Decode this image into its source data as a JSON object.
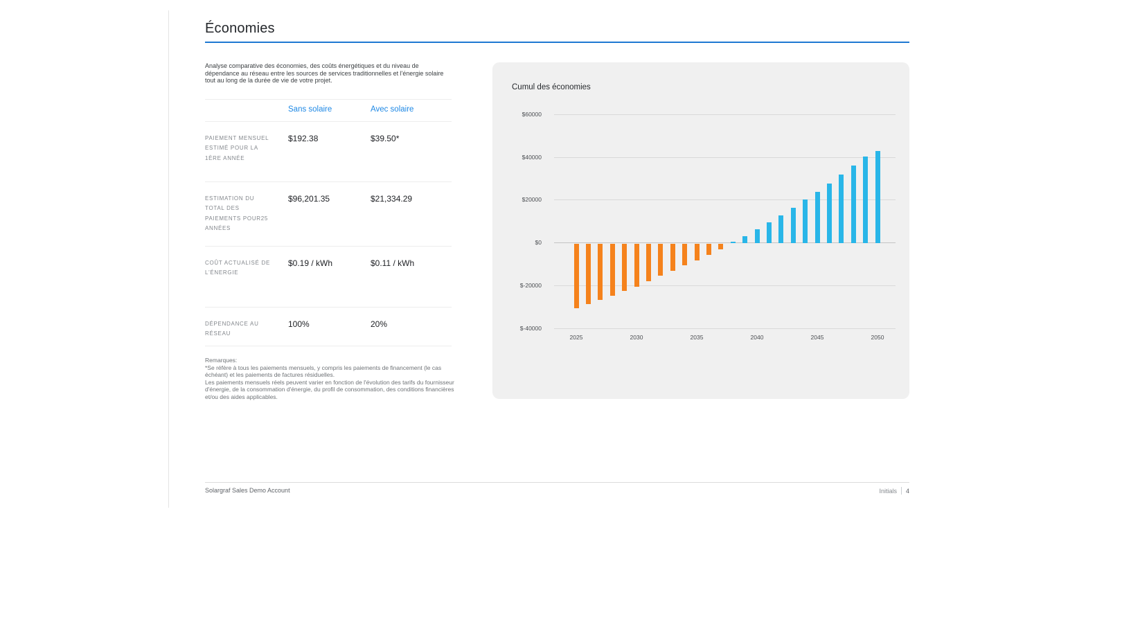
{
  "page": {
    "title": "Économies",
    "description": "Analyse comparative des économies, des coûts énergétiques et du niveau de dépendance au réseau entre les sources de services traditionnelles et l'énergie solaire tout au long de la durée de vie de votre projet.",
    "accent_color": "#1e78d2"
  },
  "comparison_table": {
    "columns": [
      "Sans solaire",
      "Avec solaire"
    ],
    "rows": [
      {
        "label": "PAIEMENT MENSUEL ESTIMÉ POUR LA 1ÈRE ANNÉE",
        "sans_solaire": "$192.38",
        "avec_solaire": "$39.50*"
      },
      {
        "label": "ESTIMATION DU TOTAL DES PAIEMENTS POUR25 ANNÉES",
        "sans_solaire": "$96,201.35",
        "avec_solaire": "$21,334.29"
      },
      {
        "label": "COÛT ACTUALISÉ DE L'ÉNERGIE",
        "sans_solaire": "$0.19 / kWh",
        "avec_solaire": "$0.11 / kWh"
      },
      {
        "label": "DÉPENDANCE AU RÉSEAU",
        "sans_solaire": "100%",
        "avec_solaire": "20%"
      }
    ]
  },
  "notes": {
    "heading": "Remarques:",
    "lines": [
      "*Se réfère à tous les paiements mensuels, y compris les paiements de financement (le cas échéant) et les paiements de factures résiduelles.",
      "Les paiements mensuels réels peuvent varier en fonction de l'évolution des tarifs du fournisseur d'énergie, de la consommation d'énergie, du profil de consommation, des conditions financières et/ou des aides applicables."
    ]
  },
  "chart_data": {
    "type": "bar",
    "title": "Cumul des économies",
    "x": [
      2025,
      2026,
      2027,
      2028,
      2029,
      2030,
      2031,
      2032,
      2033,
      2034,
      2035,
      2036,
      2037,
      2038,
      2039,
      2040,
      2041,
      2042,
      2043,
      2044,
      2045,
      2046,
      2047,
      2048,
      2049,
      2050
    ],
    "values": [
      -30000,
      -28100,
      -26200,
      -24300,
      -22200,
      -20000,
      -17400,
      -14800,
      -12500,
      -10000,
      -7700,
      -5300,
      -2700,
      600,
      3400,
      6400,
      9600,
      13100,
      16400,
      20300,
      24100,
      27800,
      32200,
      36300,
      40600,
      43100
    ],
    "ylim": [
      -40000,
      60000
    ],
    "ytick_values": [
      60000,
      40000,
      20000,
      0,
      -20000,
      -40000
    ],
    "ytick_labels": [
      "$60000",
      "$40000",
      "$20000",
      "$0",
      "$-20000",
      "$-40000"
    ],
    "xtick_labels": [
      "2025",
      "2030",
      "2035",
      "2040",
      "2045",
      "2050"
    ],
    "positive_color": "#29b6e8",
    "negative_color": "#f5821c",
    "panel_bg": "#f0f0f0",
    "grid": true,
    "legend_position": "none",
    "xlabel": "",
    "ylabel": ""
  },
  "footer": {
    "left": "Solargraf Sales Demo Account",
    "right_label": "Initials",
    "right_page": "4"
  }
}
